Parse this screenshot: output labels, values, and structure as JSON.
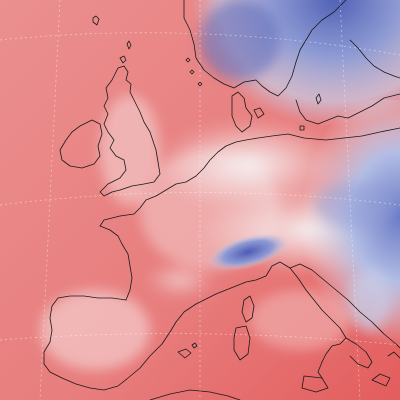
{
  "map": {
    "region": "Europe",
    "field_type": "diverging",
    "colors": {
      "warm_dark": "#e04f4f",
      "warm": "#ea8484",
      "warm_light": "#f3b6b6",
      "neutral": "#f4eeef",
      "cool_light": "#c6cde8",
      "cool": "#8f9bd4",
      "cool_dark": "#5262b6",
      "coastline": "#1a1a1a",
      "graticule": "#ffffff"
    },
    "graticule": "dotted",
    "legend": "none"
  }
}
